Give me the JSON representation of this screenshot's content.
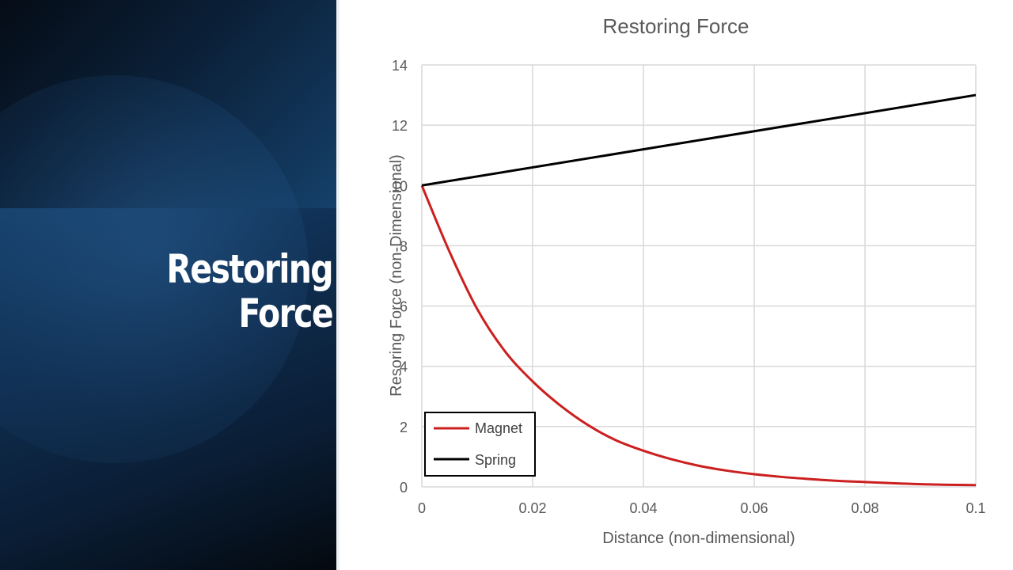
{
  "slide": {
    "title_line1": "Restoring",
    "title_line2": "Force"
  },
  "chart_data": {
    "type": "line",
    "title": "Restoring Force",
    "xlabel": "Distance (non-dimensional)",
    "ylabel": "Resoring Force (non-Dimensional)",
    "xlim": [
      0,
      0.1
    ],
    "ylim": [
      0,
      14
    ],
    "xticks": [
      0,
      0.02,
      0.04,
      0.06,
      0.08,
      0.1
    ],
    "xtick_labels": [
      "0",
      "0.02",
      "0.04",
      "0.06",
      "0.08",
      "0.1"
    ],
    "yticks": [
      0,
      2,
      4,
      6,
      8,
      10,
      12,
      14
    ],
    "ytick_labels": [
      "0",
      "2",
      "4",
      "6",
      "8",
      "10",
      "12",
      "14"
    ],
    "grid": true,
    "legend_position": "bottom-left",
    "series": [
      {
        "name": "Magnet",
        "color": "#cc1f1f",
        "x": [
          0,
          0.005,
          0.01,
          0.015,
          0.02,
          0.025,
          0.03,
          0.035,
          0.04,
          0.045,
          0.05,
          0.055,
          0.06,
          0.065,
          0.07,
          0.075,
          0.08,
          0.085,
          0.09,
          0.095,
          0.1
        ],
        "y": [
          10,
          7.8,
          5.9,
          4.5,
          3.5,
          2.7,
          2.05,
          1.55,
          1.2,
          0.92,
          0.7,
          0.54,
          0.42,
          0.33,
          0.26,
          0.2,
          0.16,
          0.12,
          0.09,
          0.07,
          0.06
        ]
      },
      {
        "name": "Spring",
        "color": "#000000",
        "x": [
          0,
          0.1
        ],
        "y": [
          10,
          13
        ]
      }
    ]
  }
}
